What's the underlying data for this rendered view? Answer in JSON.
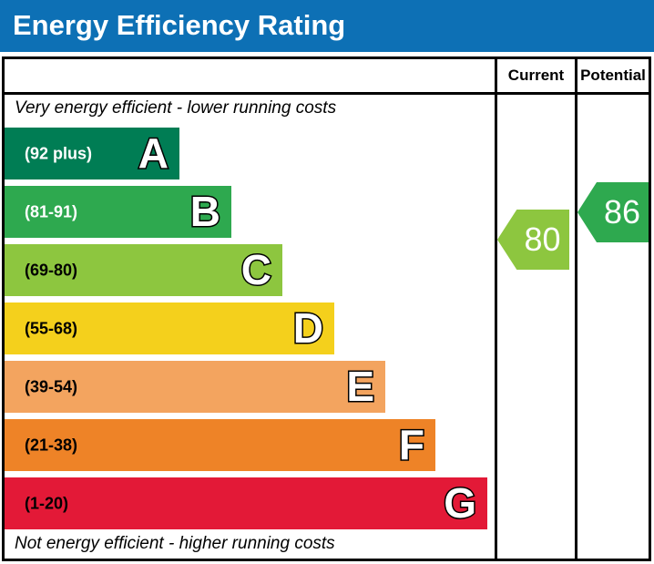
{
  "header": {
    "title": "Energy Efficiency Rating",
    "background": "#0d70b5"
  },
  "table": {
    "columns": {
      "current": "Current",
      "potential": "Potential"
    },
    "top_caption": "Very energy efficient - lower running costs",
    "bottom_caption": "Not energy efficient - higher running costs"
  },
  "bands": [
    {
      "letter": "A",
      "range": "(92 plus)",
      "color": "#007d54",
      "text_color": "#ffffff"
    },
    {
      "letter": "B",
      "range": "(81-91)",
      "color": "#2ea94f",
      "text_color": "#ffffff"
    },
    {
      "letter": "C",
      "range": "(69-80)",
      "color": "#8dc63f",
      "text_color": "#000000"
    },
    {
      "letter": "D",
      "range": "(55-68)",
      "color": "#f4d01c",
      "text_color": "#000000"
    },
    {
      "letter": "E",
      "range": "(39-54)",
      "color": "#f3a45f",
      "text_color": "#000000"
    },
    {
      "letter": "F",
      "range": "(21-38)",
      "color": "#ee8327",
      "text_color": "#000000"
    },
    {
      "letter": "G",
      "range": "(1-20)",
      "color": "#e31937",
      "text_color": "#000000"
    }
  ],
  "indicators": {
    "current": {
      "value": "80",
      "color": "#8dc63f"
    },
    "potential": {
      "value": "86",
      "color": "#2ea94f"
    }
  },
  "chart_data": {
    "type": "bar",
    "title": "Energy Efficiency Rating",
    "categories": [
      "A",
      "B",
      "C",
      "D",
      "E",
      "F",
      "G"
    ],
    "band_ranges": [
      "92 plus",
      "81-91",
      "69-80",
      "55-68",
      "39-54",
      "21-38",
      "1-20"
    ],
    "band_colors": [
      "#007d54",
      "#2ea94f",
      "#8dc63f",
      "#f4d01c",
      "#f3a45f",
      "#ee8327",
      "#e31937"
    ],
    "bar_lengths_relative": [
      0.36,
      0.47,
      0.58,
      0.68,
      0.79,
      0.89,
      1.0
    ],
    "series": [
      {
        "name": "Current",
        "value": 80,
        "band": "C",
        "color": "#8dc63f"
      },
      {
        "name": "Potential",
        "value": 86,
        "band": "B",
        "color": "#2ea94f"
      }
    ],
    "annotations": [
      "Very energy efficient - lower running costs",
      "Not energy efficient - higher running costs"
    ],
    "value_range": [
      1,
      100
    ],
    "legend_position": "none",
    "grid": false
  }
}
